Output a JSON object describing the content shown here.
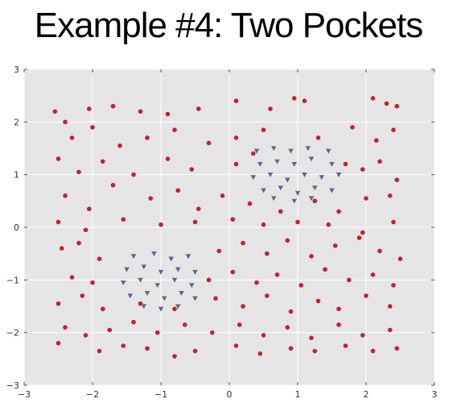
{
  "chart_data": {
    "type": "scatter",
    "title": "Example #4: Two Pockets",
    "xlim": [
      -3,
      3
    ],
    "ylim": [
      -3,
      3
    ],
    "x_ticks": [
      -3,
      -2,
      -1,
      0,
      1,
      2,
      3
    ],
    "y_ticks": [
      -3,
      -2,
      -1,
      0,
      1,
      2,
      3
    ],
    "x_tick_labels": [
      "−3",
      "−2",
      "−1",
      "0",
      "1",
      "2",
      "3"
    ],
    "y_tick_labels": [
      "−3",
      "−2",
      "−1",
      "0",
      "1",
      "2",
      "3"
    ],
    "grid": true,
    "background": "#e5e5e5",
    "grid_color": "#ffffff",
    "series": [
      {
        "marker": "circle",
        "color": "#c8202a",
        "points": [
          [
            -2.55,
            2.2
          ],
          [
            -2.4,
            2.0
          ],
          [
            -2.05,
            2.25
          ],
          [
            -1.7,
            2.3
          ],
          [
            -1.3,
            2.2
          ],
          [
            -0.9,
            2.15
          ],
          [
            -0.45,
            2.25
          ],
          [
            0.1,
            2.4
          ],
          [
            0.6,
            2.25
          ],
          [
            0.95,
            2.45
          ],
          [
            1.1,
            2.4
          ],
          [
            2.1,
            2.45
          ],
          [
            2.3,
            2.35
          ],
          [
            2.45,
            2.3
          ],
          [
            -2.3,
            1.7
          ],
          [
            -2.0,
            1.9
          ],
          [
            -1.6,
            1.55
          ],
          [
            -1.2,
            1.7
          ],
          [
            -0.8,
            1.85
          ],
          [
            -0.3,
            1.6
          ],
          [
            0.1,
            1.7
          ],
          [
            0.5,
            1.85
          ],
          [
            1.3,
            1.7
          ],
          [
            1.8,
            1.9
          ],
          [
            2.15,
            1.65
          ],
          [
            2.4,
            1.85
          ],
          [
            -2.5,
            1.3
          ],
          [
            -2.2,
            1.05
          ],
          [
            -1.85,
            1.25
          ],
          [
            -1.4,
            1.0
          ],
          [
            -0.9,
            1.3
          ],
          [
            -0.55,
            1.1
          ],
          [
            0.1,
            1.2
          ],
          [
            0.35,
            1.4
          ],
          [
            1.7,
            1.2
          ],
          [
            1.95,
            1.1
          ],
          [
            2.2,
            1.25
          ],
          [
            2.45,
            0.9
          ],
          [
            -2.4,
            0.6
          ],
          [
            -2.05,
            0.35
          ],
          [
            -1.7,
            0.8
          ],
          [
            -1.15,
            0.55
          ],
          [
            -0.75,
            0.7
          ],
          [
            -0.45,
            0.35
          ],
          [
            -0.1,
            0.6
          ],
          [
            0.3,
            0.45
          ],
          [
            0.75,
            0.3
          ],
          [
            1.25,
            0.5
          ],
          [
            1.6,
            0.3
          ],
          [
            2.0,
            0.55
          ],
          [
            2.35,
            0.6
          ],
          [
            -2.5,
            0.1
          ],
          [
            -2.1,
            -0.05
          ],
          [
            -1.55,
            0.15
          ],
          [
            -1.0,
            0.05
          ],
          [
            -0.5,
            0.1
          ],
          [
            0.05,
            0.15
          ],
          [
            0.5,
            0.05
          ],
          [
            1.0,
            0.1
          ],
          [
            1.45,
            0.05
          ],
          [
            1.95,
            -0.1
          ],
          [
            2.4,
            0.1
          ],
          [
            -2.45,
            -0.4
          ],
          [
            -2.2,
            -0.3
          ],
          [
            -1.9,
            -0.6
          ],
          [
            -0.15,
            -0.45
          ],
          [
            0.2,
            -0.3
          ],
          [
            0.55,
            -0.5
          ],
          [
            0.85,
            -0.25
          ],
          [
            1.2,
            -0.55
          ],
          [
            1.55,
            -0.35
          ],
          [
            1.9,
            -0.2
          ],
          [
            2.2,
            -0.45
          ],
          [
            2.5,
            -0.6
          ],
          [
            -2.3,
            -0.95
          ],
          [
            -2.0,
            -1.05
          ],
          [
            -0.3,
            -1.0
          ],
          [
            0.05,
            -0.85
          ],
          [
            0.4,
            -1.05
          ],
          [
            0.7,
            -0.9
          ],
          [
            1.05,
            -1.1
          ],
          [
            1.4,
            -0.8
          ],
          [
            1.75,
            -1.0
          ],
          [
            2.1,
            -0.9
          ],
          [
            2.4,
            -1.1
          ],
          [
            -2.5,
            -1.45
          ],
          [
            -2.15,
            -1.3
          ],
          [
            -1.85,
            -1.55
          ],
          [
            -1.3,
            -1.45
          ],
          [
            -0.8,
            -1.55
          ],
          [
            -0.2,
            -1.35
          ],
          [
            0.2,
            -1.5
          ],
          [
            0.55,
            -1.3
          ],
          [
            0.9,
            -1.6
          ],
          [
            1.3,
            -1.4
          ],
          [
            1.6,
            -1.55
          ],
          [
            2.0,
            -1.3
          ],
          [
            2.35,
            -1.5
          ],
          [
            -2.4,
            -1.9
          ],
          [
            -2.1,
            -2.05
          ],
          [
            -1.75,
            -1.95
          ],
          [
            -1.4,
            -1.8
          ],
          [
            -1.05,
            -2.0
          ],
          [
            -0.65,
            -1.85
          ],
          [
            -0.25,
            -2.0
          ],
          [
            0.15,
            -1.85
          ],
          [
            0.5,
            -2.05
          ],
          [
            0.85,
            -1.9
          ],
          [
            1.2,
            -2.1
          ],
          [
            1.6,
            -1.85
          ],
          [
            1.95,
            -2.05
          ],
          [
            2.35,
            -1.95
          ],
          [
            -2.5,
            -2.2
          ],
          [
            -1.9,
            -2.35
          ],
          [
            -1.55,
            -2.25
          ],
          [
            -1.2,
            -2.3
          ],
          [
            -0.8,
            -2.45
          ],
          [
            -0.5,
            -2.35
          ],
          [
            0.1,
            -2.25
          ],
          [
            0.45,
            -2.4
          ],
          [
            0.9,
            -2.3
          ],
          [
            1.25,
            -2.35
          ],
          [
            1.7,
            -2.25
          ],
          [
            2.1,
            -2.35
          ],
          [
            2.45,
            -2.3
          ]
        ]
      },
      {
        "marker": "triangle-down",
        "color": "#5a6899",
        "points": [
          [
            0.4,
            1.45
          ],
          [
            0.65,
            1.5
          ],
          [
            0.9,
            1.45
          ],
          [
            1.15,
            1.5
          ],
          [
            1.45,
            1.45
          ],
          [
            0.45,
            1.2
          ],
          [
            0.7,
            1.25
          ],
          [
            0.95,
            1.2
          ],
          [
            1.2,
            1.3
          ],
          [
            1.5,
            1.2
          ],
          [
            0.35,
            0.95
          ],
          [
            0.6,
            1.0
          ],
          [
            0.85,
            0.9
          ],
          [
            1.1,
            1.0
          ],
          [
            1.35,
            0.95
          ],
          [
            1.6,
            1.0
          ],
          [
            0.5,
            0.7
          ],
          [
            0.75,
            0.75
          ],
          [
            1.0,
            0.65
          ],
          [
            1.25,
            0.75
          ],
          [
            1.5,
            0.7
          ],
          [
            0.65,
            0.55
          ],
          [
            0.95,
            0.5
          ],
          [
            1.2,
            0.55
          ],
          [
            -1.4,
            -0.55
          ],
          [
            -1.1,
            -0.5
          ],
          [
            -0.85,
            -0.6
          ],
          [
            -0.6,
            -0.55
          ],
          [
            -1.5,
            -0.8
          ],
          [
            -1.25,
            -0.75
          ],
          [
            -1.0,
            -0.85
          ],
          [
            -0.75,
            -0.8
          ],
          [
            -0.5,
            -0.85
          ],
          [
            -1.55,
            -1.05
          ],
          [
            -1.3,
            -1.0
          ],
          [
            -1.05,
            -1.1
          ],
          [
            -0.8,
            -1.0
          ],
          [
            -0.55,
            -1.1
          ],
          [
            -1.45,
            -1.3
          ],
          [
            -1.2,
            -1.25
          ],
          [
            -0.95,
            -1.35
          ],
          [
            -0.7,
            -1.25
          ],
          [
            -0.5,
            -1.35
          ],
          [
            -1.25,
            -1.5
          ],
          [
            -1.0,
            -1.55
          ],
          [
            -0.75,
            -1.5
          ]
        ]
      }
    ]
  }
}
